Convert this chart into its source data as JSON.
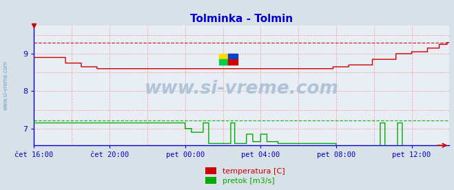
{
  "title": "Tolminka - Tolmin",
  "title_color": "#0000cc",
  "bg_color": "#d8e0e8",
  "plot_bg_color": "#e8eef4",
  "grid_color": "#e8a0a0",
  "axis_color": "#0000cc",
  "xlabel_color": "#0000aa",
  "ylabel_color": "#0000aa",
  "watermark": "www.si-vreme.com",
  "watermark_color": "#b0c4d8",
  "x_tick_labels": [
    "čet 16:00",
    "čet 20:00",
    "pet 00:00",
    "pet 04:00",
    "pet 08:00",
    "pet 12:00"
  ],
  "x_tick_positions": [
    0,
    96,
    192,
    288,
    384,
    480
  ],
  "ylim": [
    6.55,
    9.75
  ],
  "yticks": [
    7,
    8,
    9
  ],
  "xlim": [
    0,
    528
  ],
  "temp_color": "#cc0000",
  "flow_color": "#00aa00",
  "legend_labels": [
    "temperatura [C]",
    "pretok [m3/s]"
  ],
  "legend_colors": [
    "#cc0000",
    "#00aa00"
  ],
  "temp_max": 9.3,
  "flow_max": 7.22,
  "figsize": [
    6.59,
    2.76
  ],
  "dpi": 100
}
